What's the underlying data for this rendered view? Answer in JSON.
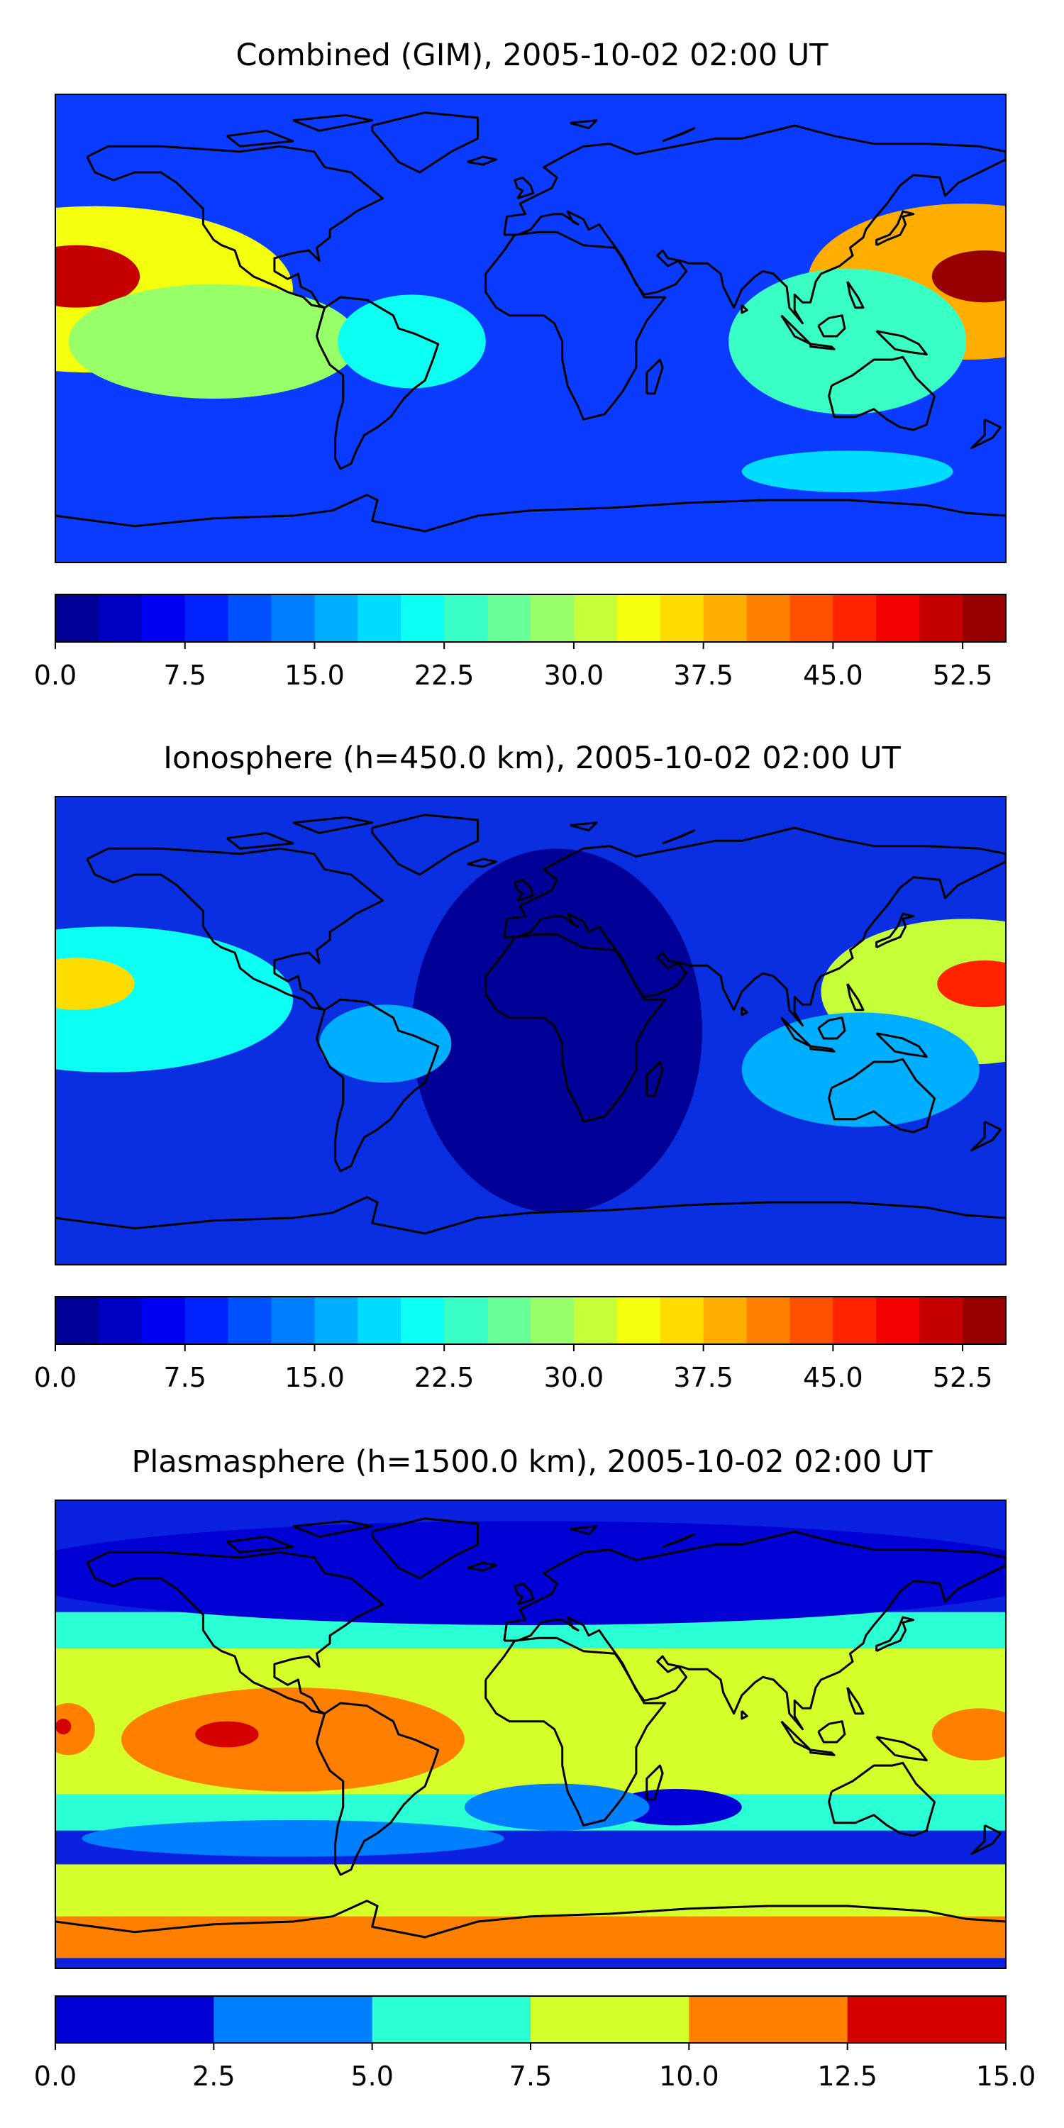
{
  "chart_data": [
    {
      "type": "heatmap",
      "title": "Combined (GIM), 2005-10-02 02:00 UT",
      "colorbar": {
        "range": [
          0,
          55
        ],
        "levels": [
          0,
          2.5,
          5,
          7.5,
          10,
          12.5,
          15,
          17.5,
          20,
          22.5,
          25,
          27.5,
          30,
          32.5,
          35,
          37.5,
          40,
          42.5,
          45,
          47.5,
          50,
          52.5,
          55
        ],
        "tick_labels": [
          "0.0",
          "7.5",
          "15.0",
          "22.5",
          "30.0",
          "37.5",
          "45.0",
          "52.5"
        ],
        "colormap": "jet"
      },
      "background_color": "#0a3bff",
      "features": [
        {
          "kind": "lobe",
          "lon": -165,
          "lat": 15,
          "rx": 75,
          "ry": 32,
          "value": 33,
          "colormap_note": "eastern Pacific crest"
        },
        {
          "kind": "lobe",
          "lon": -172,
          "lat": 20,
          "rx": 24,
          "ry": 12,
          "value": 50
        },
        {
          "kind": "lobe",
          "lon": -120,
          "lat": -5,
          "rx": 55,
          "ry": 22,
          "value": 28
        },
        {
          "kind": "lobe",
          "lon": -45,
          "lat": -5,
          "rx": 28,
          "ry": 18,
          "value": 20
        },
        {
          "kind": "lobe",
          "lon": 165,
          "lat": 18,
          "rx": 60,
          "ry": 30,
          "value": 38
        },
        {
          "kind": "lobe",
          "lon": 172,
          "lat": 20,
          "rx": 20,
          "ry": 10,
          "value": 53
        },
        {
          "kind": "lobe",
          "lon": 120,
          "lat": -5,
          "rx": 45,
          "ry": 28,
          "value": 24
        },
        {
          "kind": "lobe",
          "lon": 120,
          "lat": -55,
          "rx": 40,
          "ry": 8,
          "value": 18
        }
      ]
    },
    {
      "type": "heatmap",
      "title": "Ionosphere  (h=450.0 km), 2005-10-02 02:00 UT",
      "colorbar": {
        "range": [
          0,
          55
        ],
        "levels": [
          0,
          2.5,
          5,
          7.5,
          10,
          12.5,
          15,
          17.5,
          20,
          22.5,
          25,
          27.5,
          30,
          32.5,
          35,
          37.5,
          40,
          42.5,
          45,
          47.5,
          50,
          52.5,
          55
        ],
        "tick_labels": [
          "0.0",
          "7.5",
          "15.0",
          "22.5",
          "30.0",
          "37.5",
          "45.0",
          "52.5"
        ],
        "colormap": "jet"
      },
      "background_color": "#0a2fe0",
      "features": [
        {
          "kind": "lobe",
          "lon": 10,
          "lat": 0,
          "rx": 55,
          "ry": 70,
          "value": 2
        },
        {
          "kind": "lobe",
          "lon": -160,
          "lat": 12,
          "rx": 70,
          "ry": 28,
          "value": 22
        },
        {
          "kind": "lobe",
          "lon": -172,
          "lat": 18,
          "rx": 22,
          "ry": 10,
          "value": 35
        },
        {
          "kind": "lobe",
          "lon": -55,
          "lat": -5,
          "rx": 25,
          "ry": 15,
          "value": 15
        },
        {
          "kind": "lobe",
          "lon": 165,
          "lat": 15,
          "rx": 55,
          "ry": 28,
          "value": 30
        },
        {
          "kind": "lobe",
          "lon": 172,
          "lat": 18,
          "rx": 18,
          "ry": 9,
          "value": 45
        },
        {
          "kind": "lobe",
          "lon": 125,
          "lat": -15,
          "rx": 45,
          "ry": 22,
          "value": 16
        }
      ]
    },
    {
      "type": "heatmap",
      "title": "Plasmasphere (h=1500.0 km), 2005-10-02 02:00 UT",
      "colorbar": {
        "range": [
          0,
          15
        ],
        "levels": [
          0,
          2.5,
          5,
          7.5,
          10,
          12.5,
          15
        ],
        "tick_labels": [
          "0.0",
          "2.5",
          "5.0",
          "7.5",
          "10.0",
          "12.5",
          "15.0"
        ],
        "colormap": "jet"
      },
      "background_color": "#0a22e0",
      "features": [
        {
          "kind": "band",
          "lat": 5,
          "half_width": 42,
          "value": 6
        },
        {
          "kind": "band",
          "lat": 5,
          "half_width": 28,
          "value": 8.5
        },
        {
          "kind": "band",
          "lat": -62,
          "half_width": 12,
          "value": 8.5
        },
        {
          "kind": "band",
          "lat": -78,
          "half_width": 8,
          "value": 11
        },
        {
          "kind": "lobe",
          "lon": -90,
          "lat": -2,
          "rx": 65,
          "ry": 20,
          "value": 11
        },
        {
          "kind": "lobe",
          "lon": -115,
          "lat": 0,
          "rx": 12,
          "ry": 5,
          "value": 13.5
        },
        {
          "kind": "lobe",
          "lon": -175,
          "lat": 2,
          "rx": 10,
          "ry": 10,
          "value": 11
        },
        {
          "kind": "lobe",
          "lon": -177,
          "lat": 3,
          "rx": 3,
          "ry": 3,
          "value": 13.5
        },
        {
          "kind": "lobe",
          "lon": 170,
          "lat": 0,
          "rx": 18,
          "ry": 10,
          "value": 11
        },
        {
          "kind": "lobe",
          "lon": 55,
          "lat": -28,
          "rx": 25,
          "ry": 7,
          "value": 1.5
        },
        {
          "kind": "lobe",
          "lon": 10,
          "lat": -28,
          "rx": 35,
          "ry": 9,
          "value": 4
        },
        {
          "kind": "lobe",
          "lon": -90,
          "lat": -40,
          "rx": 80,
          "ry": 7,
          "value": 4
        },
        {
          "kind": "lobe",
          "lon": 0,
          "lat": 62,
          "rx": 200,
          "ry": 20,
          "value": 1.5
        }
      ]
    }
  ]
}
